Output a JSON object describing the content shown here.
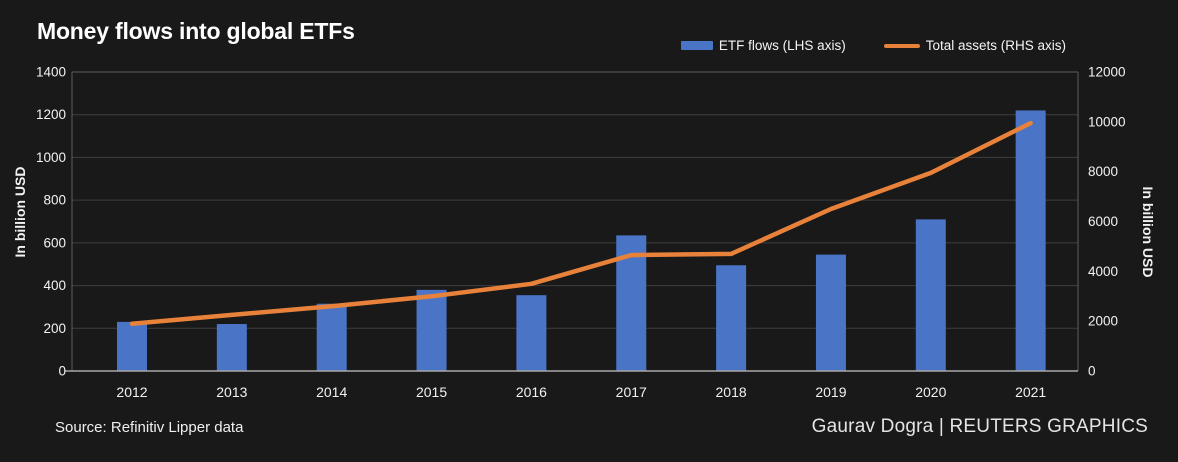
{
  "title": "Money flows into global ETFs",
  "legend": {
    "items": [
      {
        "label": "ETF flows (LHS axis)",
        "swatch": "bar"
      },
      {
        "label": "Total assets (RHS axis)",
        "swatch": "line"
      }
    ]
  },
  "footer": {
    "source": "Source: Refinitiv Lipper data",
    "credit": "Gaurav Dogra | REUTERS GRAPHICS"
  },
  "colors": {
    "background": "#191919",
    "bar": "#4a74c6",
    "line": "#e8813a",
    "grid": "#3f3f3f",
    "frame": "#5d5d5d",
    "axis_line": "#a8a8a8",
    "tick_text": "#f2f2f2"
  },
  "chart_data": {
    "type": "bar",
    "subtype": "bar+line combo, dual axis",
    "title": "Money flows into global ETFs",
    "categories": [
      "2012",
      "2013",
      "2014",
      "2015",
      "2016",
      "2017",
      "2018",
      "2019",
      "2020",
      "2021"
    ],
    "series": [
      {
        "name": "ETF flows (LHS axis)",
        "type": "bar",
        "axis": "left",
        "values": [
          230,
          220,
          315,
          380,
          355,
          635,
          495,
          545,
          710,
          1220
        ]
      },
      {
        "name": "Total assets (RHS axis)",
        "type": "line",
        "axis": "right",
        "values": [
          1900,
          2250,
          2600,
          3000,
          3500,
          4650,
          4700,
          6500,
          7950,
          9950
        ]
      }
    ],
    "ylabel_left": "In billion USD",
    "ylabel_right": "In billion USD",
    "xlabel": "",
    "yleft": {
      "min": 0,
      "max": 1400,
      "step": 200
    },
    "yright": {
      "min": 0,
      "max": 12000,
      "step": 2000
    },
    "yleft_tick_labels": [
      "0",
      "200",
      "400",
      "600",
      "800",
      "1000",
      "1200",
      "1400"
    ],
    "yright_tick_labels": [
      "0",
      "2000",
      "4000",
      "6000",
      "8000",
      "10000",
      "12000"
    ],
    "grid": true,
    "legend_position": "top-right"
  }
}
